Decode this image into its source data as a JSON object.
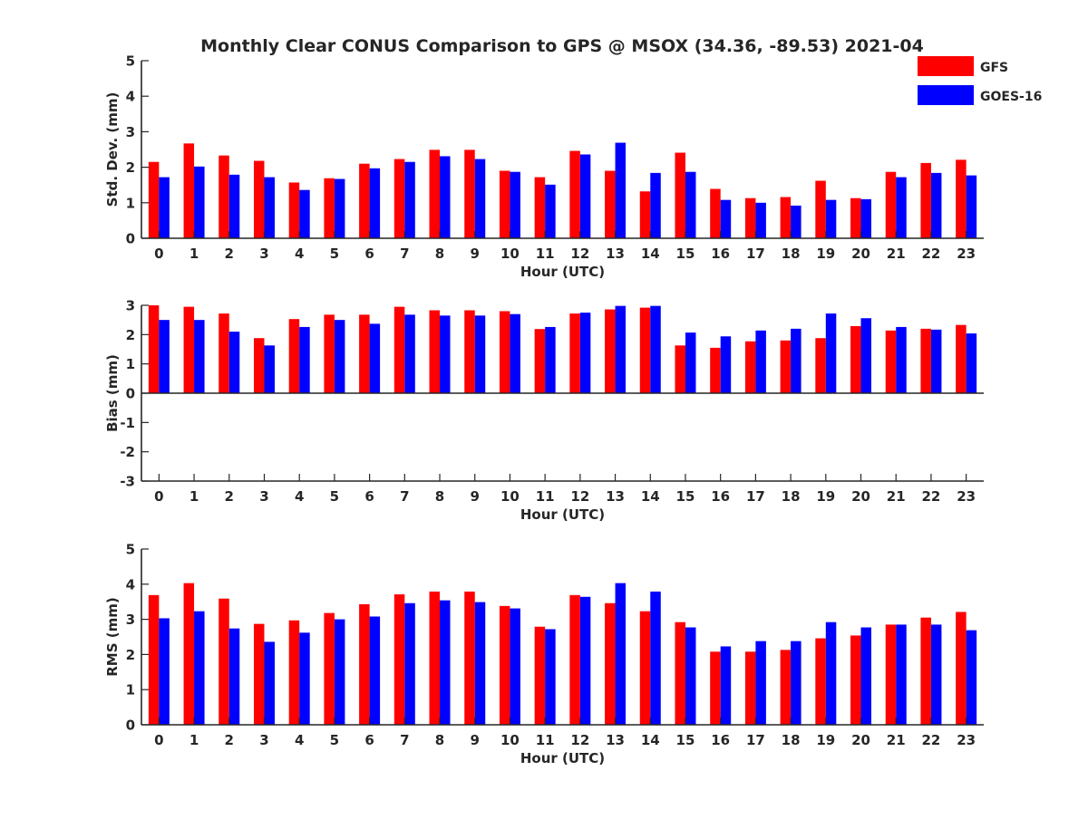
{
  "title": "Monthly Clear CONUS Comparison to GPS @ MSOX (34.36, -89.53) 2021-04",
  "legend": {
    "placement": "top-right",
    "entries": [
      {
        "label": "GFS",
        "color": "#ff0000"
      },
      {
        "label": "GOES-16",
        "color": "#0000ff"
      }
    ]
  },
  "chart_data": [
    {
      "type": "bar",
      "xlabel": "Hour (UTC)",
      "ylabel": "Std. Dev. (mm)",
      "ylim": [
        0,
        5
      ],
      "yticks": [
        0,
        1,
        2,
        3,
        4,
        5
      ],
      "categories": [
        "0",
        "1",
        "2",
        "3",
        "4",
        "5",
        "6",
        "7",
        "8",
        "9",
        "10",
        "11",
        "12",
        "13",
        "14",
        "15",
        "16",
        "17",
        "18",
        "19",
        "20",
        "21",
        "22",
        "23"
      ],
      "series": [
        {
          "name": "GFS",
          "color": "#ff0000",
          "values": [
            2.15,
            2.67,
            2.33,
            2.18,
            1.57,
            1.69,
            2.1,
            2.23,
            2.49,
            2.49,
            1.9,
            1.72,
            2.46,
            1.9,
            1.32,
            2.41,
            1.39,
            1.13,
            1.16,
            1.62,
            1.13,
            1.87,
            2.12,
            2.21
          ]
        },
        {
          "name": "GOES-16",
          "color": "#0000ff",
          "values": [
            1.72,
            2.02,
            1.79,
            1.72,
            1.36,
            1.67,
            1.97,
            2.15,
            2.31,
            2.23,
            1.87,
            1.51,
            2.36,
            2.69,
            1.84,
            1.87,
            1.08,
            1.0,
            0.92,
            1.08,
            1.1,
            1.72,
            1.84,
            1.77
          ]
        }
      ]
    },
    {
      "type": "bar",
      "xlabel": "Hour (UTC)",
      "ylabel": "Bias (mm)",
      "ylim": [
        -3,
        3
      ],
      "yticks": [
        -3,
        -2,
        -1,
        0,
        1,
        2,
        3
      ],
      "categories": [
        "0",
        "1",
        "2",
        "3",
        "4",
        "5",
        "6",
        "7",
        "8",
        "9",
        "10",
        "11",
        "12",
        "13",
        "14",
        "15",
        "16",
        "17",
        "18",
        "19",
        "20",
        "21",
        "22",
        "23"
      ],
      "series": [
        {
          "name": "GFS",
          "color": "#ff0000",
          "values": [
            3.0,
            2.95,
            2.72,
            1.88,
            2.53,
            2.68,
            2.68,
            2.95,
            2.83,
            2.83,
            2.8,
            2.19,
            2.72,
            2.86,
            2.92,
            1.63,
            1.55,
            1.77,
            1.8,
            1.88,
            2.29,
            2.14,
            2.2,
            2.33
          ]
        },
        {
          "name": "GOES-16",
          "color": "#0000ff",
          "values": [
            2.5,
            2.5,
            2.1,
            1.63,
            2.26,
            2.5,
            2.37,
            2.68,
            2.65,
            2.65,
            2.7,
            2.26,
            2.75,
            2.98,
            2.98,
            2.07,
            1.94,
            2.14,
            2.2,
            2.72,
            2.56,
            2.26,
            2.17,
            2.04
          ]
        }
      ]
    },
    {
      "type": "bar",
      "xlabel": "Hour (UTC)",
      "ylabel": "RMS (mm)",
      "ylim": [
        0,
        5
      ],
      "yticks": [
        0,
        1,
        2,
        3,
        4,
        5
      ],
      "categories": [
        "0",
        "1",
        "2",
        "3",
        "4",
        "5",
        "6",
        "7",
        "8",
        "9",
        "10",
        "11",
        "12",
        "13",
        "14",
        "15",
        "16",
        "17",
        "18",
        "19",
        "20",
        "21",
        "22",
        "23"
      ],
      "series": [
        {
          "name": "GFS",
          "color": "#ff0000",
          "values": [
            3.69,
            4.03,
            3.59,
            2.87,
            2.97,
            3.18,
            3.43,
            3.71,
            3.79,
            3.79,
            3.38,
            2.79,
            3.69,
            3.46,
            3.23,
            2.92,
            2.08,
            2.08,
            2.13,
            2.46,
            2.54,
            2.85,
            3.05,
            3.21
          ]
        },
        {
          "name": "GOES-16",
          "color": "#0000ff",
          "values": [
            3.03,
            3.23,
            2.74,
            2.36,
            2.62,
            3.0,
            3.08,
            3.46,
            3.54,
            3.49,
            3.31,
            2.72,
            3.64,
            4.03,
            3.79,
            2.77,
            2.23,
            2.38,
            2.38,
            2.92,
            2.77,
            2.85,
            2.85,
            2.69
          ]
        }
      ]
    }
  ]
}
